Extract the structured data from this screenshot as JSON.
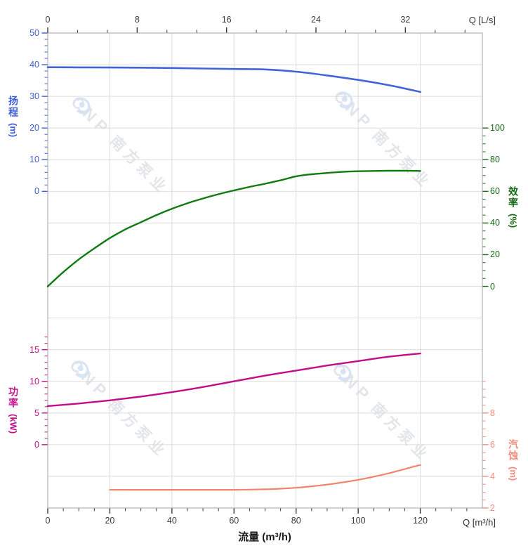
{
  "watermark": {
    "brand": "CNP",
    "brand_cn": "南方泵业"
  },
  "chart_data": {
    "type": "line",
    "x_axis_bottom": {
      "axis_label": "流量 (m³/h)",
      "corner_label": "Q [m³/h]",
      "ticks": [
        0,
        20,
        40,
        60,
        80,
        100,
        120
      ],
      "range": [
        0,
        140
      ],
      "minor_step": 5,
      "tick_color": "#3a3a3a"
    },
    "x_axis_top": {
      "corner_label": "Q [L/s]",
      "ticks": [
        0,
        8,
        16,
        24,
        32
      ],
      "range": [
        0,
        38.9
      ],
      "unit_conversion_to_bottom": 3.6,
      "tick_color": "#3a3a3a"
    },
    "y_axes": [
      {
        "id": "head",
        "title": "扬程",
        "unit": "(m)",
        "side": "left",
        "ticks": [
          50,
          40,
          30,
          20,
          10,
          0
        ],
        "minor_step": 2,
        "color": "#3f5fd0",
        "curve_color": "#4164d9"
      },
      {
        "id": "efficiency",
        "title": "效率",
        "unit": "(%)",
        "side": "right",
        "ticks": [
          100,
          80,
          60,
          40,
          20,
          0
        ],
        "minor_step": 5,
        "color": "#156b15",
        "curve_color": "#117a11"
      },
      {
        "id": "power",
        "title": "功率",
        "unit": "(kW)",
        "side": "left",
        "ticks": [
          15,
          10,
          5,
          0
        ],
        "minor_step": 1,
        "color": "#c0128a",
        "curve_color": "#c20d8b"
      },
      {
        "id": "npsh",
        "title": "汽蚀",
        "unit": "(m)",
        "side": "right",
        "ticks": [
          8,
          6,
          4,
          2
        ],
        "minor_step": 0.5,
        "color": "#f28b7c",
        "curve_color": "#f2846d"
      }
    ],
    "series": [
      {
        "name": "扬程",
        "axis": "head",
        "points": [
          [
            0,
            39.2
          ],
          [
            10,
            39.15
          ],
          [
            20,
            39.1
          ],
          [
            30,
            39.05
          ],
          [
            40,
            38.95
          ],
          [
            50,
            38.8
          ],
          [
            60,
            38.65
          ],
          [
            70,
            38.5
          ],
          [
            80,
            37.8
          ],
          [
            90,
            36.6
          ],
          [
            100,
            35.2
          ],
          [
            110,
            33.5
          ],
          [
            120,
            31.4
          ]
        ]
      },
      {
        "name": "效率",
        "axis": "efficiency",
        "points": [
          [
            0,
            0
          ],
          [
            5,
            9
          ],
          [
            10,
            17
          ],
          [
            15,
            24
          ],
          [
            20,
            30.5
          ],
          [
            25,
            36
          ],
          [
            30,
            40.5
          ],
          [
            35,
            45
          ],
          [
            40,
            49
          ],
          [
            45,
            52.5
          ],
          [
            50,
            55.5
          ],
          [
            55,
            58.2
          ],
          [
            60,
            60.6
          ],
          [
            65,
            62.8
          ],
          [
            70,
            64.8
          ],
          [
            75,
            67
          ],
          [
            80,
            69.5
          ],
          [
            85,
            70.8
          ],
          [
            90,
            71.6
          ],
          [
            95,
            72.3
          ],
          [
            100,
            72.7
          ],
          [
            105,
            72.9
          ],
          [
            110,
            73
          ],
          [
            115,
            73
          ],
          [
            120,
            72.9
          ]
        ]
      },
      {
        "name": "功率",
        "axis": "power",
        "points": [
          [
            0,
            6.1
          ],
          [
            10,
            6.5
          ],
          [
            20,
            7.0
          ],
          [
            30,
            7.6
          ],
          [
            40,
            8.3
          ],
          [
            50,
            9.1
          ],
          [
            60,
            10.0
          ],
          [
            70,
            10.9
          ],
          [
            80,
            11.7
          ],
          [
            90,
            12.5
          ],
          [
            100,
            13.2
          ],
          [
            110,
            13.9
          ],
          [
            120,
            14.4
          ]
        ]
      },
      {
        "name": "汽蚀",
        "axis": "npsh",
        "points": [
          [
            20,
            3.15
          ],
          [
            30,
            3.15
          ],
          [
            40,
            3.15
          ],
          [
            50,
            3.15
          ],
          [
            60,
            3.15
          ],
          [
            70,
            3.18
          ],
          [
            75,
            3.22
          ],
          [
            80,
            3.28
          ],
          [
            85,
            3.37
          ],
          [
            90,
            3.48
          ],
          [
            95,
            3.62
          ],
          [
            100,
            3.78
          ],
          [
            105,
            3.98
          ],
          [
            110,
            4.2
          ],
          [
            115,
            4.46
          ],
          [
            120,
            4.72
          ]
        ]
      }
    ],
    "grid": true,
    "grid_color": "#dcdcdc",
    "frame_color": "#b2b2b2"
  }
}
